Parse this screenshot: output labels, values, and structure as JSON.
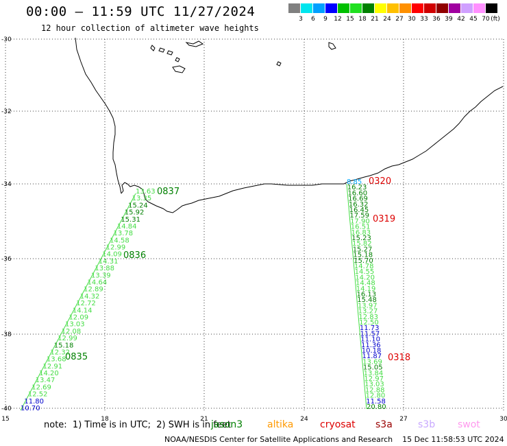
{
  "header": {
    "title": "00:00 – 11:59 UTC 11/27/2024",
    "subtitle": "12 hour collection of altimeter wave heights"
  },
  "legend": {
    "unit": "(ft)",
    "bins": [
      {
        "label": "3",
        "color": "#808080"
      },
      {
        "label": "6",
        "color": "#00e5ee"
      },
      {
        "label": "9",
        "color": "#00a0ff"
      },
      {
        "label": "12",
        "color": "#0000ff"
      },
      {
        "label": "15",
        "color": "#00c000"
      },
      {
        "label": "18",
        "color": "#20e020"
      },
      {
        "label": "21",
        "color": "#008000"
      },
      {
        "label": "24",
        "color": "#ffff00"
      },
      {
        "label": "27",
        "color": "#ffc000"
      },
      {
        "label": "30",
        "color": "#ff9000"
      },
      {
        "label": "33",
        "color": "#ff0000"
      },
      {
        "label": "36",
        "color": "#d00000"
      },
      {
        "label": "39",
        "color": "#900000"
      },
      {
        "label": "42",
        "color": "#a000a0"
      },
      {
        "label": "45",
        "color": "#d0a0ff"
      },
      {
        "label": "70",
        "color": "#ff90ff"
      },
      {
        "label": "",
        "color": "#000000"
      }
    ]
  },
  "axes": {
    "lat_ticks": [
      "-30",
      "-32",
      "-34",
      "-36",
      "-38",
      "-40"
    ],
    "lon_ticks": [
      "15",
      "18",
      "21",
      "24",
      "27",
      "30"
    ]
  },
  "tracks": {
    "west": {
      "heights": [
        {
          "v": "13.63",
          "c": "#44dd44"
        },
        {
          "v": "13.35",
          "c": "#44dd44"
        },
        {
          "v": "15.24",
          "c": "#008000"
        },
        {
          "v": "15.92",
          "c": "#008000"
        },
        {
          "v": "15.31",
          "c": "#008000"
        },
        {
          "v": "14.84",
          "c": "#44dd44"
        },
        {
          "v": "13.78",
          "c": "#44dd44"
        },
        {
          "v": "14.58",
          "c": "#44dd44"
        },
        {
          "v": "12.99",
          "c": "#44dd44"
        },
        {
          "v": "14.09",
          "c": "#44dd44"
        },
        {
          "v": "14.31",
          "c": "#44dd44"
        },
        {
          "v": "13.88",
          "c": "#44dd44"
        },
        {
          "v": "13.39",
          "c": "#44dd44"
        },
        {
          "v": "14.64",
          "c": "#44dd44"
        },
        {
          "v": "12.89",
          "c": "#44dd44"
        },
        {
          "v": "14.32",
          "c": "#44dd44"
        },
        {
          "v": "12.72",
          "c": "#44dd44"
        },
        {
          "v": "14.14",
          "c": "#44dd44"
        },
        {
          "v": "12.09",
          "c": "#44dd44"
        },
        {
          "v": "13.03",
          "c": "#44dd44"
        },
        {
          "v": "12.08",
          "c": "#44dd44"
        },
        {
          "v": "12.99",
          "c": "#44dd44"
        },
        {
          "v": "15.18",
          "c": "#008000"
        },
        {
          "v": "12.32",
          "c": "#44dd44"
        },
        {
          "v": "13.68",
          "c": "#44dd44"
        },
        {
          "v": "12.91",
          "c": "#44dd44"
        },
        {
          "v": "14.20",
          "c": "#44dd44"
        },
        {
          "v": "13.47",
          "c": "#44dd44"
        },
        {
          "v": "12.69",
          "c": "#44dd44"
        },
        {
          "v": "12.52",
          "c": "#44dd44"
        },
        {
          "v": "11.80",
          "c": "#0000cc"
        },
        {
          "v": "10.70",
          "c": "#0000cc"
        }
      ],
      "times": [
        {
          "t": "0837",
          "c": "#008000"
        },
        {
          "t": "0836",
          "c": "#008000"
        },
        {
          "t": "0835",
          "c": "#008000"
        }
      ]
    },
    "east": {
      "heights": [
        {
          "v": "8.85",
          "c": "#00aaff"
        },
        {
          "v": "16.23",
          "c": "#008000"
        },
        {
          "v": "16.60",
          "c": "#008000"
        },
        {
          "v": "16.69",
          "c": "#008000"
        },
        {
          "v": "16.32",
          "c": "#008000"
        },
        {
          "v": "16.45",
          "c": "#008000"
        },
        {
          "v": "17.59",
          "c": "#008000"
        },
        {
          "v": "17.90",
          "c": "#44dd44"
        },
        {
          "v": "16.51",
          "c": "#44dd44"
        },
        {
          "v": "16.83",
          "c": "#44dd44"
        },
        {
          "v": "15.23",
          "c": "#008000"
        },
        {
          "v": "15.82",
          "c": "#44dd44"
        },
        {
          "v": "15.27",
          "c": "#008000"
        },
        {
          "v": "15.18",
          "c": "#008000"
        },
        {
          "v": "15.70",
          "c": "#008000"
        },
        {
          "v": "14.78",
          "c": "#44dd44"
        },
        {
          "v": "14.55",
          "c": "#44dd44"
        },
        {
          "v": "14.20",
          "c": "#44dd44"
        },
        {
          "v": "14.48",
          "c": "#44dd44"
        },
        {
          "v": "14.19",
          "c": "#44dd44"
        },
        {
          "v": "16.13",
          "c": "#008000"
        },
        {
          "v": "15.48",
          "c": "#008000"
        },
        {
          "v": "13.97",
          "c": "#44dd44"
        },
        {
          "v": "13.27",
          "c": "#44dd44"
        },
        {
          "v": "12.83",
          "c": "#44dd44"
        },
        {
          "v": "12.50",
          "c": "#44dd44"
        },
        {
          "v": "11.73",
          "c": "#0000cc"
        },
        {
          "v": "11.57",
          "c": "#0000cc"
        },
        {
          "v": "11.10",
          "c": "#0000cc"
        },
        {
          "v": "11.36",
          "c": "#0000cc"
        },
        {
          "v": "10.18",
          "c": "#0000cc"
        },
        {
          "v": "11.87",
          "c": "#0000cc"
        },
        {
          "v": "13.69",
          "c": "#44dd44"
        },
        {
          "v": "15.05",
          "c": "#008000"
        },
        {
          "v": "13.84",
          "c": "#44dd44"
        },
        {
          "v": "12.97",
          "c": "#44dd44"
        },
        {
          "v": "13.03",
          "c": "#44dd44"
        },
        {
          "v": "12.88",
          "c": "#44dd44"
        },
        {
          "v": "12.80",
          "c": "#44dd44"
        },
        {
          "v": "11.58",
          "c": "#0000cc"
        },
        {
          "v": "20.80",
          "c": "#008000"
        }
      ],
      "times": [
        {
          "t": "0320",
          "c": "#dd0000"
        },
        {
          "t": "0319",
          "c": "#dd0000"
        },
        {
          "t": "0318",
          "c": "#dd0000"
        }
      ]
    }
  },
  "footer": {
    "note": "note:  1) Time is in UTC;  2) SWH is in feet",
    "satellites": [
      {
        "name": "jason3",
        "color": "#008000"
      },
      {
        "name": "altika",
        "color": "#ff9900"
      },
      {
        "name": "cryosat",
        "color": "#dd0000"
      },
      {
        "name": "s3a",
        "color": "#990000"
      },
      {
        "name": "s3b",
        "color": "#c8a8ff"
      },
      {
        "name": "swot",
        "color": "#ff99ee"
      }
    ],
    "credit": "NOAA/NESDIS Center for Satellite Applications and Research    15 Dec 11:58:53 UTC 2024"
  }
}
